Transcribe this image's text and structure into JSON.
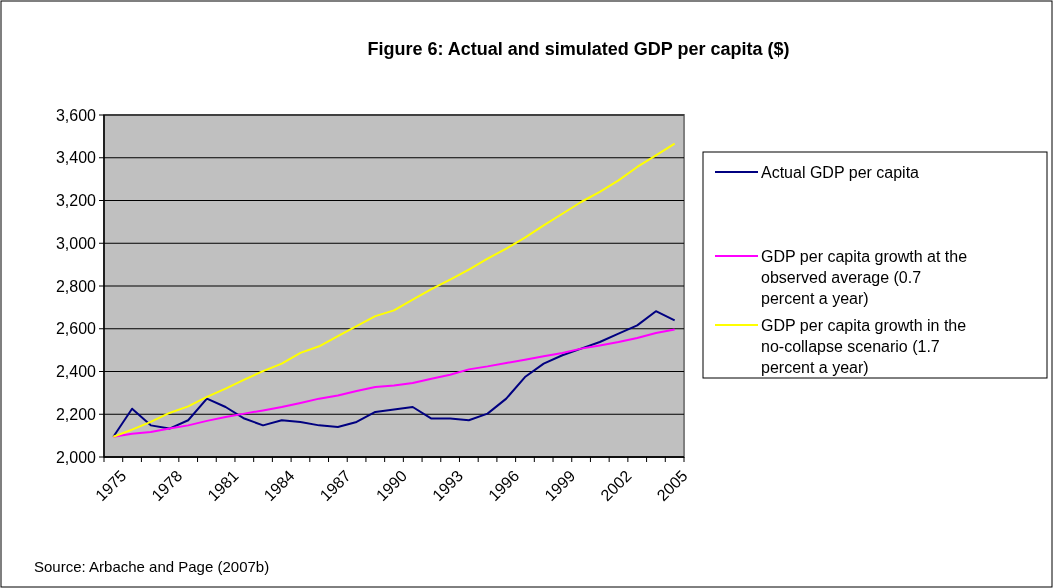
{
  "chart_data": {
    "type": "line",
    "title": "Figure 6:  Actual and simulated GDP per capita ($)",
    "categories": [
      "1975",
      null,
      null,
      "1978",
      null,
      null,
      "1981",
      null,
      null,
      "1984",
      null,
      null,
      "1987",
      null,
      null,
      "1990",
      null,
      null,
      "1993",
      null,
      null,
      "1996",
      null,
      null,
      "1999",
      null,
      null,
      "2002",
      null,
      null,
      "2005"
    ],
    "series": [
      {
        "name": "Actual GDP per capita",
        "color": "#000080",
        "values": [
          2095,
          2226,
          2148,
          2133,
          2172,
          2273,
          2234,
          2180,
          2148,
          2172,
          2164,
          2148,
          2140,
          2164,
          2211,
          2222,
          2234,
          2180,
          2180,
          2172,
          2203,
          2273,
          2374,
          2437,
          2476,
          2507,
          2538,
          2577,
          2616,
          2682,
          2639
        ]
      },
      {
        "name": "GDP per capita growth at the observed average (0.7 percent a year)",
        "color": "#ff00ff",
        "values": [
          2095,
          2109,
          2117,
          2133,
          2148,
          2169,
          2187,
          2203,
          2218,
          2234,
          2253,
          2273,
          2288,
          2309,
          2327,
          2335,
          2346,
          2366,
          2385,
          2410,
          2424,
          2440,
          2455,
          2471,
          2487,
          2507,
          2522,
          2538,
          2557,
          2580,
          2596
        ]
      },
      {
        "name": "GDP per capita growth in the no-collapse scenario (1.7 percent a year)",
        "color": "#ffff00",
        "values": [
          2095,
          2128,
          2164,
          2206,
          2237,
          2281,
          2320,
          2362,
          2402,
          2437,
          2487,
          2518,
          2565,
          2612,
          2659,
          2686,
          2736,
          2785,
          2830,
          2877,
          2928,
          2975,
          3026,
          3084,
          3138,
          3193,
          3240,
          3294,
          3357,
          3411,
          3466
        ]
      }
    ],
    "ylim": [
      2000,
      3600
    ],
    "yticks": [
      {
        "value": 2000,
        "label": "2,000"
      },
      {
        "value": 2200,
        "label": "2,200"
      },
      {
        "value": 2400,
        "label": "2,400"
      },
      {
        "value": 2600,
        "label": "2,600"
      },
      {
        "value": 2800,
        "label": "2,800"
      },
      {
        "value": 3000,
        "label": "3,000"
      },
      {
        "value": 3200,
        "label": "3,200"
      },
      {
        "value": 3400,
        "label": "3,400"
      },
      {
        "value": 3600,
        "label": "3,600"
      }
    ],
    "grid": "y",
    "legend": "right",
    "marker": "none",
    "line_style": "solid",
    "annotations": [
      "Source: Arbache and Page (2007b)"
    ]
  }
}
